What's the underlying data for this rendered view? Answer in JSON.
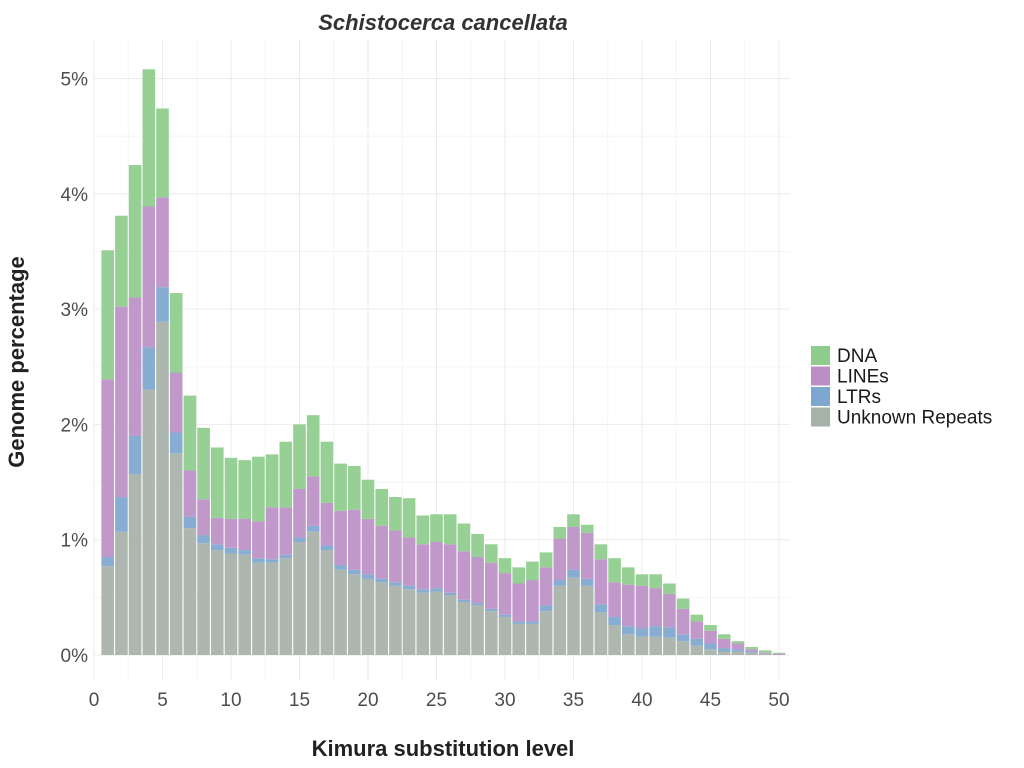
{
  "chart_data": {
    "type": "bar",
    "stacked": true,
    "title": "Schistocerca cancellata",
    "xlabel": "Kimura substitution level",
    "ylabel": "Genome percentage",
    "xlim": [
      0,
      51
    ],
    "ylim": [
      0,
      5.1
    ],
    "x_ticks": [
      0,
      5,
      10,
      15,
      20,
      25,
      30,
      35,
      40,
      45,
      50
    ],
    "y_ticks": [
      0,
      1,
      2,
      3,
      4,
      5
    ],
    "y_tick_labels": [
      "0%",
      "1%",
      "2%",
      "3%",
      "4%",
      "5%"
    ],
    "legend_position": "right",
    "grid": true,
    "x": [
      1,
      2,
      3,
      4,
      5,
      6,
      7,
      8,
      9,
      10,
      11,
      12,
      13,
      14,
      15,
      16,
      17,
      18,
      19,
      20,
      21,
      22,
      23,
      24,
      25,
      26,
      27,
      28,
      29,
      30,
      31,
      32,
      33,
      34,
      35,
      36,
      37,
      38,
      39,
      40,
      41,
      42,
      43,
      44,
      45,
      46,
      47,
      48,
      49,
      50
    ],
    "series": [
      {
        "name": "Unknown Repeats",
        "color": "#a6b1a8",
        "values": [
          0.77,
          1.07,
          1.57,
          2.3,
          2.89,
          1.75,
          1.1,
          0.97,
          0.91,
          0.88,
          0.87,
          0.8,
          0.8,
          0.84,
          0.98,
          1.07,
          0.91,
          0.74,
          0.7,
          0.66,
          0.63,
          0.6,
          0.57,
          0.54,
          0.55,
          0.52,
          0.46,
          0.43,
          0.38,
          0.33,
          0.27,
          0.27,
          0.38,
          0.6,
          0.67,
          0.6,
          0.37,
          0.26,
          0.18,
          0.16,
          0.16,
          0.15,
          0.12,
          0.08,
          0.05,
          0.03,
          0.03,
          0.02,
          0.01,
          0.0
        ]
      },
      {
        "name": "LTRs",
        "color": "#7ea6ce",
        "values": [
          0.08,
          0.3,
          0.33,
          0.37,
          0.3,
          0.18,
          0.1,
          0.07,
          0.05,
          0.05,
          0.04,
          0.04,
          0.03,
          0.03,
          0.04,
          0.05,
          0.04,
          0.04,
          0.04,
          0.04,
          0.03,
          0.03,
          0.03,
          0.03,
          0.03,
          0.02,
          0.02,
          0.02,
          0.02,
          0.02,
          0.02,
          0.02,
          0.05,
          0.05,
          0.07,
          0.06,
          0.07,
          0.07,
          0.07,
          0.07,
          0.09,
          0.09,
          0.06,
          0.06,
          0.05,
          0.03,
          0.02,
          0.01,
          0.0,
          0.0
        ]
      },
      {
        "name": "LINEs",
        "color": "#bb8fc6",
        "values": [
          1.54,
          1.65,
          1.2,
          1.22,
          0.78,
          0.52,
          0.4,
          0.31,
          0.23,
          0.25,
          0.27,
          0.32,
          0.45,
          0.41,
          0.42,
          0.43,
          0.37,
          0.47,
          0.52,
          0.48,
          0.46,
          0.45,
          0.42,
          0.39,
          0.4,
          0.42,
          0.42,
          0.4,
          0.4,
          0.36,
          0.33,
          0.36,
          0.33,
          0.36,
          0.37,
          0.4,
          0.39,
          0.3,
          0.36,
          0.37,
          0.33,
          0.29,
          0.22,
          0.15,
          0.11,
          0.08,
          0.05,
          0.02,
          0.01,
          0.01
        ]
      },
      {
        "name": "DNA",
        "color": "#8dcc8c",
        "values": [
          1.12,
          0.79,
          1.15,
          1.19,
          0.77,
          0.69,
          0.65,
          0.62,
          0.61,
          0.53,
          0.51,
          0.56,
          0.46,
          0.57,
          0.56,
          0.53,
          0.53,
          0.41,
          0.38,
          0.34,
          0.32,
          0.29,
          0.34,
          0.25,
          0.24,
          0.26,
          0.24,
          0.2,
          0.16,
          0.13,
          0.14,
          0.16,
          0.13,
          0.1,
          0.11,
          0.07,
          0.13,
          0.21,
          0.15,
          0.1,
          0.12,
          0.09,
          0.09,
          0.06,
          0.05,
          0.04,
          0.02,
          0.02,
          0.02,
          0.01
        ]
      }
    ],
    "legend": [
      "DNA",
      "LINEs",
      "LTRs",
      "Unknown Repeats"
    ],
    "legend_colors": [
      "#8dcc8c",
      "#bb8fc6",
      "#7ea6ce",
      "#a6b1a8"
    ]
  }
}
